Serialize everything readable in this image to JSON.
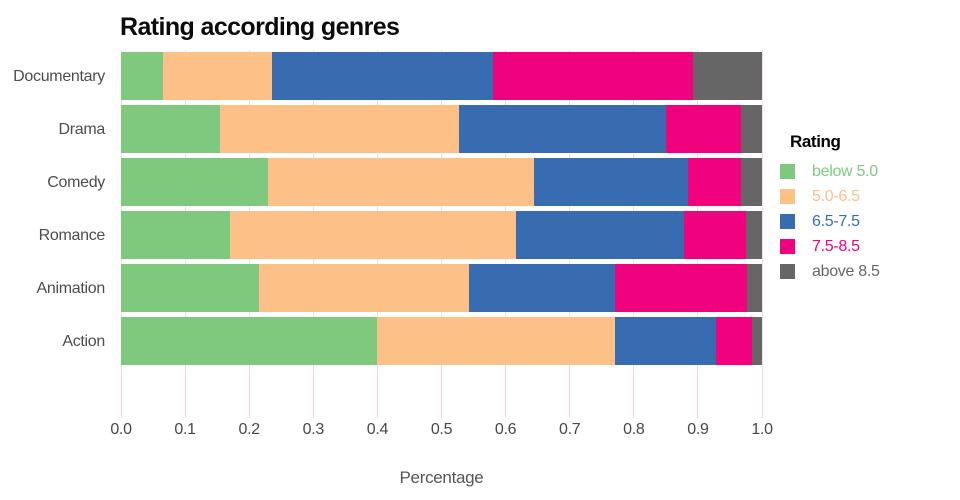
{
  "page": {
    "background": "#ffffff"
  },
  "chart_data": {
    "type": "bar",
    "orientation": "horizontal",
    "stacked": true,
    "title": "Rating according genres",
    "xlabel": "Percentage",
    "xlim": [
      0.0,
      1.0
    ],
    "x_ticks": [
      "0.0",
      "0.1",
      "0.2",
      "0.3",
      "0.4",
      "0.5",
      "0.6",
      "0.7",
      "0.8",
      "0.9",
      "1.0"
    ],
    "grid": {
      "axis": "x",
      "color": "#f2dede"
    },
    "legend": {
      "title": "Rating",
      "position": "right"
    },
    "categories": [
      "Documentary",
      "Drama",
      "Comedy",
      "Romance",
      "Animation",
      "Action"
    ],
    "series": [
      {
        "name": "below 5.0",
        "color": "#7FC97F",
        "values": [
          0.065,
          0.155,
          0.23,
          0.17,
          0.215,
          0.4
        ]
      },
      {
        "name": "5.0-6.5",
        "color": "#FDC086",
        "values": [
          0.17,
          0.373,
          0.415,
          0.446,
          0.328,
          0.37
        ]
      },
      {
        "name": "6.5-7.5",
        "color": "#386CB0",
        "values": [
          0.345,
          0.323,
          0.24,
          0.262,
          0.228,
          0.159
        ]
      },
      {
        "name": "7.5-8.5",
        "color": "#F0027F",
        "values": [
          0.313,
          0.116,
          0.082,
          0.097,
          0.205,
          0.055
        ]
      },
      {
        "name": "above 8.5",
        "color": "#666666",
        "values": [
          0.107,
          0.033,
          0.033,
          0.025,
          0.024,
          0.016
        ]
      }
    ]
  },
  "text_colors": {
    "title": "#0b0b0b",
    "category_labels": "#4d4d4d",
    "tick_labels": "#474747",
    "axis_title": "#555555"
  }
}
